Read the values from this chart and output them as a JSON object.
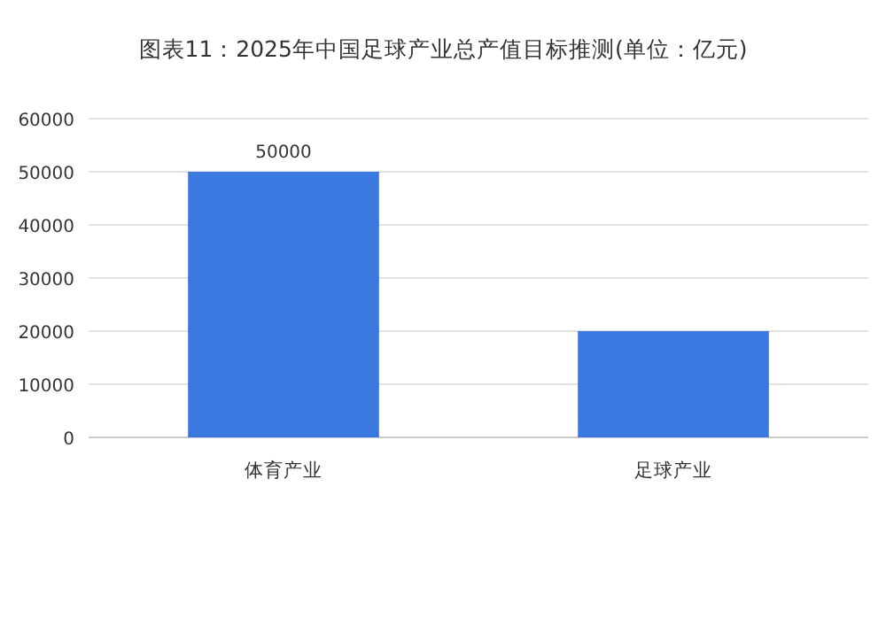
{
  "chart_data": {
    "type": "bar",
    "title": "图表11：2025年中国足球产业总产值目标推测(单位：亿元)",
    "categories": [
      "体育产业",
      "足球产业"
    ],
    "values": [
      50000,
      20000
    ],
    "value_labels": [
      "50000",
      null
    ],
    "color": "#3b78e0",
    "ylim": [
      0,
      60000
    ],
    "yticks": [
      0,
      10000,
      20000,
      30000,
      40000,
      50000,
      60000
    ],
    "grid": "y"
  }
}
